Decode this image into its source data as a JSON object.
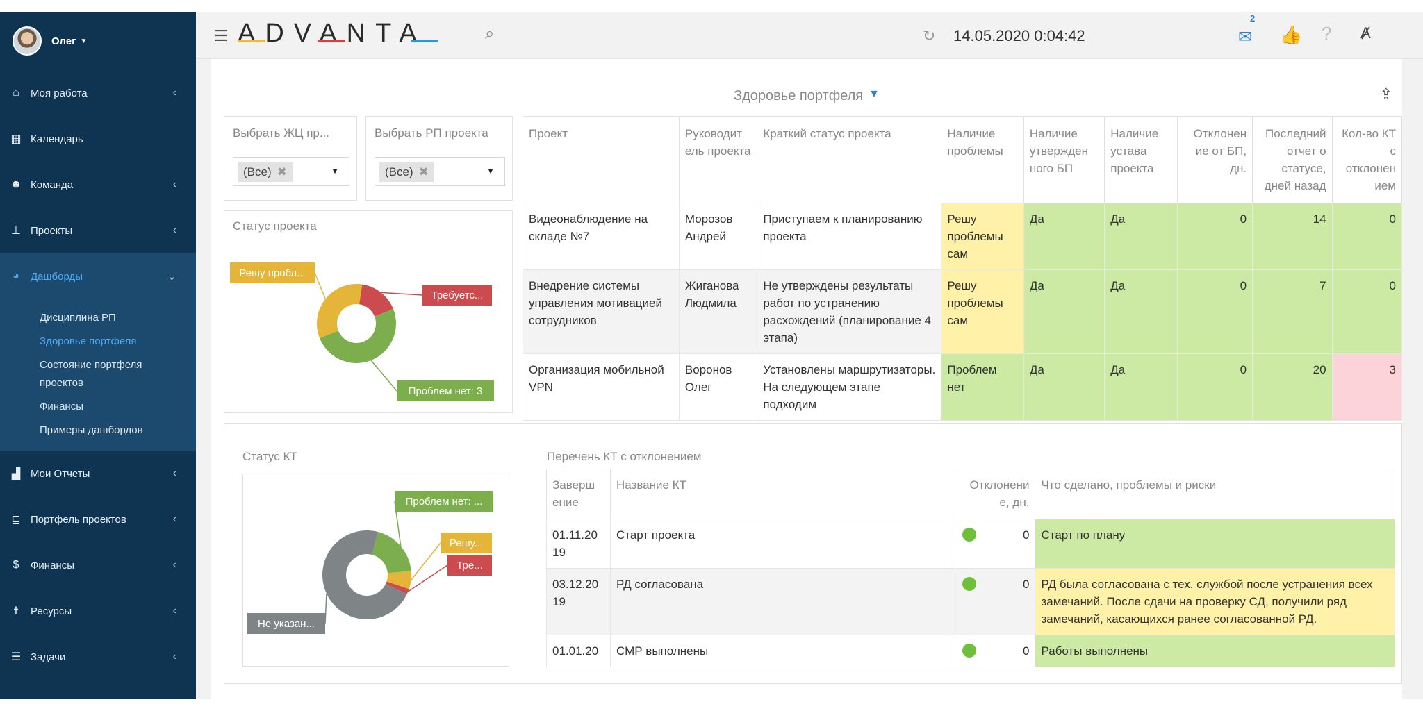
{
  "sidebar": {
    "user_name": "Олег",
    "items": [
      {
        "label": "Моя работа",
        "icon": "home-icon"
      },
      {
        "label": "Календарь",
        "icon": "calendar-icon"
      },
      {
        "label": "Команда",
        "icon": "team-icon"
      },
      {
        "label": "Проекты",
        "icon": "projects-icon"
      },
      {
        "label": "Дашборды",
        "icon": "dashboard-icon"
      },
      {
        "label": "Мои Отчеты",
        "icon": "reports-icon"
      },
      {
        "label": "Портфель проектов",
        "icon": "portfolio-icon"
      },
      {
        "label": "Финансы",
        "icon": "dollar-icon"
      },
      {
        "label": "Ресурсы",
        "icon": "resources-icon"
      },
      {
        "label": "Задачи",
        "icon": "tasks-icon"
      }
    ],
    "dashboards_sub": [
      "Дисциплина РП",
      "Здоровье портфеля",
      "Состояние портфеля проектов",
      "Финансы",
      "Примеры дашбордов"
    ]
  },
  "topbar": {
    "logo": "ADVANTA",
    "datetime": "14.05.2020 0:04:42",
    "mail_badge": "2"
  },
  "page": {
    "title": "Здоровье портфеля",
    "filter_zhc_label": "Выбрать ЖЦ пр...",
    "filter_zhc_value": "(Все)",
    "filter_rp_label": "Выбрать РП проекта",
    "filter_rp_value": "(Все)",
    "status_project_title": "Статус проекта",
    "status_kt_title": "Статус КТ",
    "kt_list_title": "Перечень КТ с отклонением"
  },
  "colors": {
    "yellow": "#e5b53a",
    "red": "#cc4b4e",
    "green": "#7cae4e",
    "gray": "#7f8486"
  },
  "project_chart": {
    "labels": [
      "Решу пробл...",
      "Требуетс...",
      "Проблем нет: 3"
    ],
    "slices": [
      {
        "name": "Решу проблемы сам",
        "value": 2,
        "color": "#e5b53a"
      },
      {
        "name": "Требуется помощь",
        "value": 1,
        "color": "#cc4b4e"
      },
      {
        "name": "Проблем нет",
        "value": 3,
        "color": "#7cae4e"
      }
    ]
  },
  "kt_chart": {
    "labels": [
      "Проблем нет: ...",
      "Решу...",
      "Тре...",
      "Не указан..."
    ],
    "slices": [
      {
        "name": "Проблем нет",
        "value": 3,
        "color": "#7cae4e"
      },
      {
        "name": "Решу проблемы сам",
        "value": 1,
        "color": "#e5b53a"
      },
      {
        "name": "Требуется помощь",
        "value": 0.3,
        "color": "#cc4b4e"
      },
      {
        "name": "Не указан",
        "value": 11,
        "color": "#7f8486"
      }
    ]
  },
  "projects_table": {
    "headers": [
      "Проект",
      "Руководит ель проекта",
      "Краткий статус проекта",
      "Наличие проблемы",
      "Наличие утвержден ного БП",
      "Наличие устава проекта",
      "Отклонен ие от БП, дн.",
      "Последний отчет о статусе, дней назад",
      "Кол-во КТ с отклонен ием"
    ],
    "rows": [
      [
        "Видеонаблюдение на складе №7",
        "Морозов Андрей",
        "Приступаем к планированию проекта",
        "Решу проблемы сам",
        "Да",
        "Да",
        "0",
        "14",
        "0"
      ],
      [
        "Внедрение системы управления мотивацией сотрудников",
        "Жиганова Людмила",
        "Не утверждены результаты работ по устранению расхождений (планирование 4 этапа)",
        "Решу проблемы сам",
        "Да",
        "Да",
        "0",
        "7",
        "0"
      ],
      [
        "Организация мобильной VPN",
        "Воронов Олег",
        "Установлены маршрутизаторы. На следующем этапе подходим",
        "Проблем нет",
        "Да",
        "Да",
        "0",
        "20",
        "3"
      ]
    ]
  },
  "kt_table": {
    "headers": [
      "Заверш ение",
      "Название КТ",
      "Отклонени е, дн.",
      "Что сделано, проблемы и риски"
    ],
    "rows": [
      [
        "01.11.20 19",
        "Старт проекта",
        "0",
        "Старт по плану"
      ],
      [
        "03.12.20 19",
        "РД согласована",
        "0",
        "РД была согласована с тех. службой после устранения всех замечаний. После сдачи на проверку СД, получили ряд замечаний, касающихся ранее согласованной РД."
      ],
      [
        "01.01.20",
        "СМР выполнены",
        "0",
        "Работы выполнены"
      ]
    ]
  }
}
